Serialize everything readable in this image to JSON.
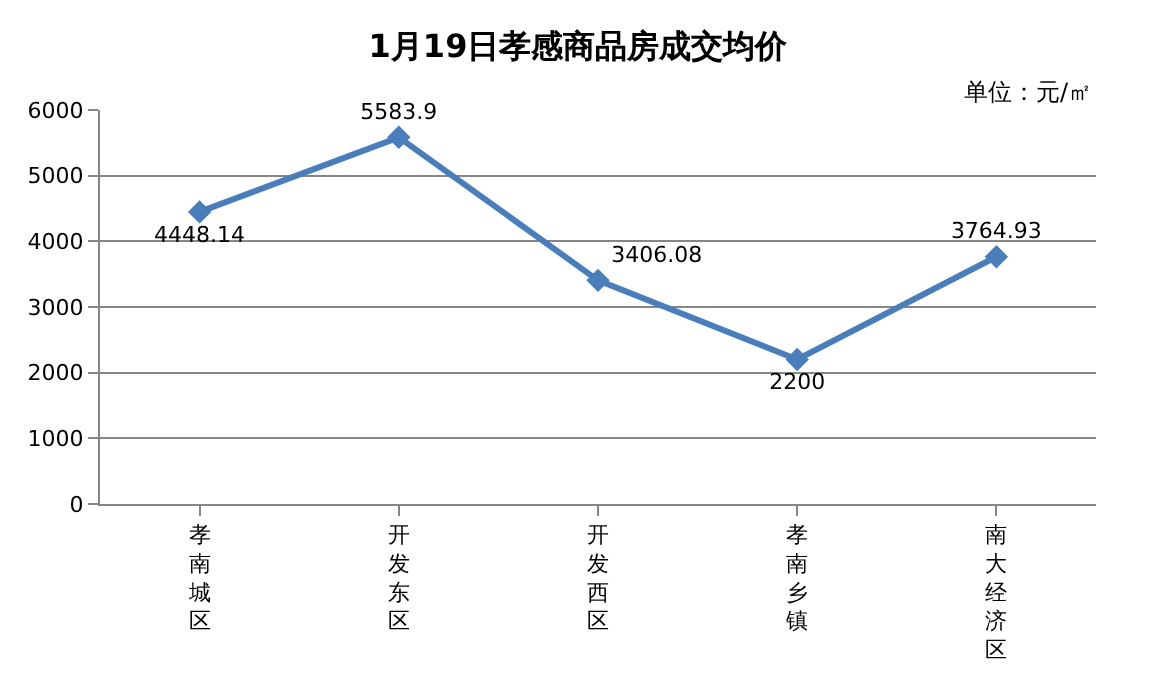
{
  "chart_data": {
    "type": "line",
    "title": "1月19日孝感商品房成交均价",
    "annotations": [
      "单位：元/㎡"
    ],
    "categories": [
      "孝南城区",
      "开发东区",
      "开发西区",
      "孝南乡镇",
      "南大经济区"
    ],
    "series": [
      {
        "color": "#4a7ebb",
        "values": [
          4448.14,
          5583.9,
          3406.08,
          2200,
          3764.93
        ]
      }
    ],
    "value_labels": [
      "4448.14",
      "5583.9",
      "3406.08",
      "2200",
      "3764.93"
    ],
    "ylim": [
      0,
      6000
    ],
    "yticks": [
      0,
      1000,
      2000,
      3000,
      4000,
      5000,
      6000
    ],
    "grid": "y",
    "marker": "diamond",
    "line_style": "solid",
    "legend": false
  }
}
